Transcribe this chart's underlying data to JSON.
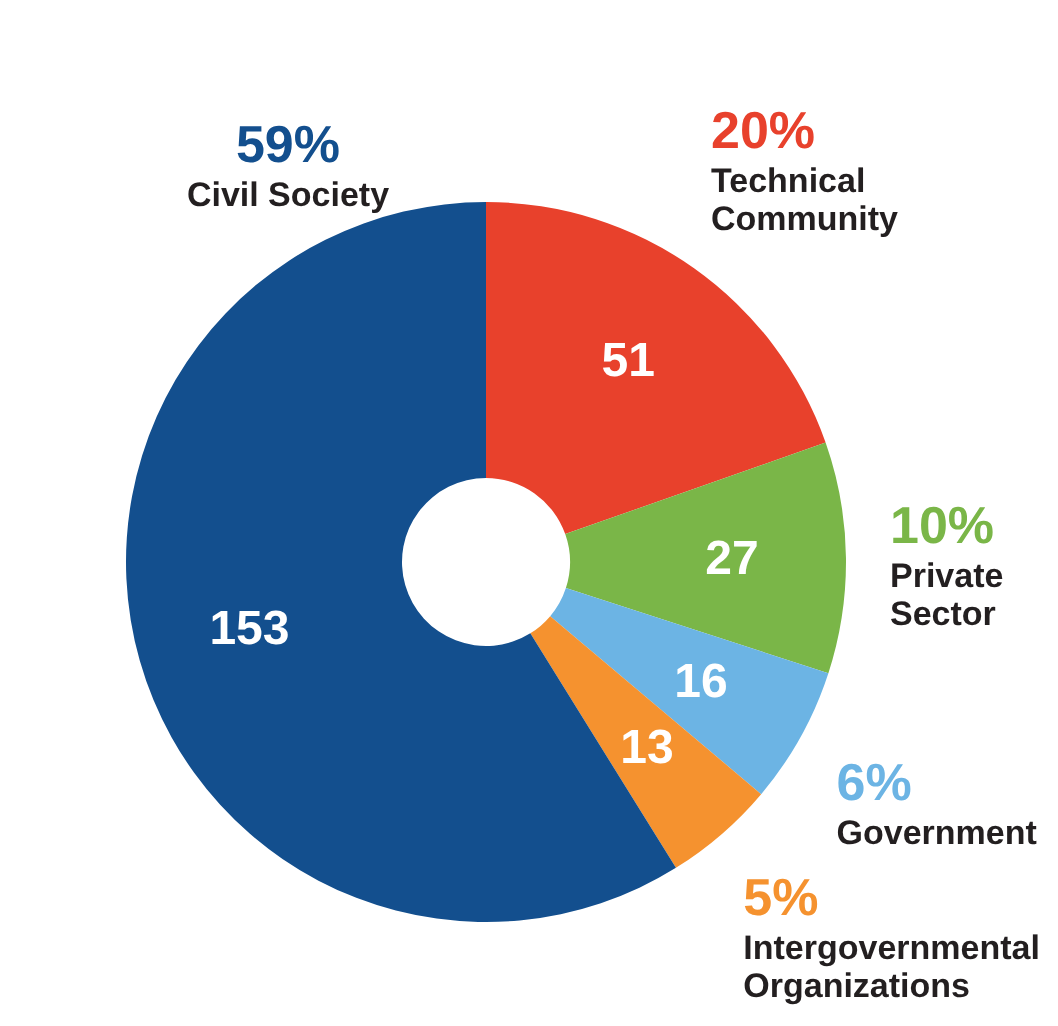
{
  "chart_data": {
    "type": "donut",
    "categories": [
      "Technical Community",
      "Private Sector",
      "Government",
      "Intergovernmental Organizations",
      "Civil Society"
    ],
    "values": [
      51,
      27,
      16,
      13,
      153
    ],
    "colors": [
      "#e8412c",
      "#7ab648",
      "#6cb4e4",
      "#f5922f",
      "#134f8e"
    ],
    "data_labels": true,
    "annotations": [
      "20%",
      "10%",
      "6%",
      "5%",
      "59%"
    ]
  }
}
